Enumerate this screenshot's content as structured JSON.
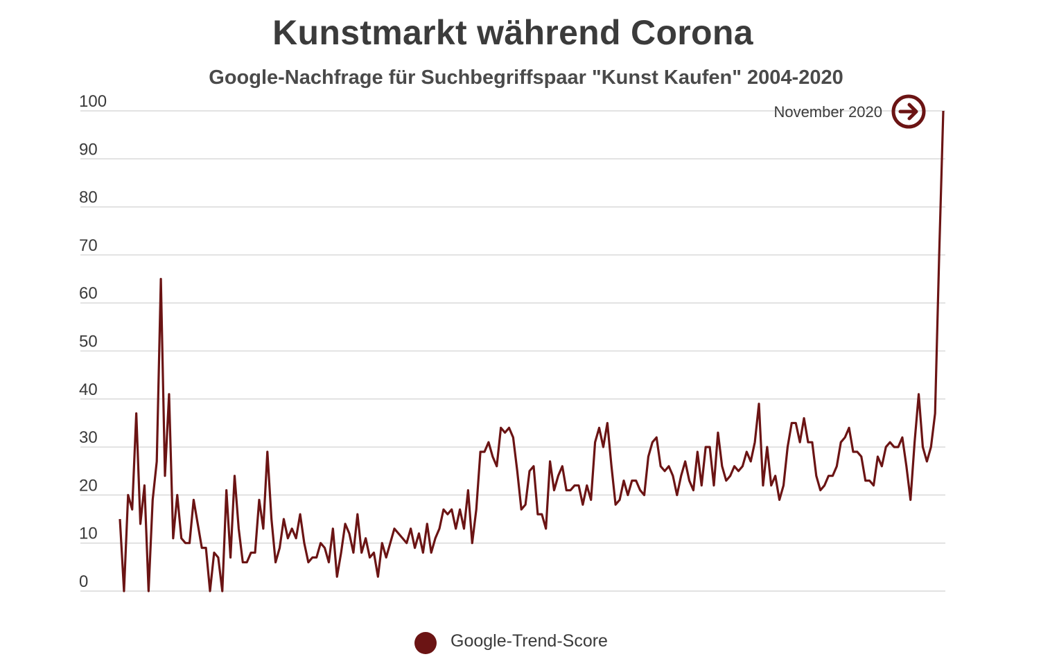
{
  "title": "Kunstmarkt während Corona",
  "subtitle": "Google-Nachfrage für Suchbegriffspaar \"Kunst Kaufen\" 2004-2020",
  "annotation": {
    "label": "November 2020",
    "icon": "arrow-right-circle-icon"
  },
  "legend": {
    "label": "Google-Trend-Score"
  },
  "colors": {
    "line": "#6b1414",
    "grid": "#d9d9d9",
    "text": "#3a3a3a"
  },
  "chart_data": {
    "type": "line",
    "title": "Kunstmarkt während Corona",
    "subtitle": "Google-Nachfrage für Suchbegriffspaar \"Kunst Kaufen\" 2004-2020",
    "xlabel": "",
    "ylabel": "",
    "x_range": [
      "2004-01",
      "2020-11"
    ],
    "ylim": [
      0,
      100
    ],
    "yticks": [
      0,
      10,
      20,
      30,
      40,
      50,
      60,
      70,
      80,
      90,
      100
    ],
    "grid": true,
    "legend_position": "bottom",
    "series": [
      {
        "name": "Google-Trend-Score",
        "values": [
          15,
          0,
          20,
          17,
          37,
          14,
          22,
          0,
          19,
          27,
          65,
          24,
          41,
          11,
          20,
          11,
          10,
          10,
          19,
          14,
          9,
          9,
          0,
          8,
          7,
          0,
          21,
          7,
          24,
          13,
          6,
          6,
          8,
          8,
          19,
          13,
          29,
          15,
          6,
          9,
          15,
          11,
          13,
          11,
          16,
          10,
          6,
          7,
          7,
          10,
          9,
          6,
          13,
          3,
          8,
          14,
          12,
          8,
          16,
          8,
          11,
          7,
          8,
          3,
          10,
          7,
          10,
          13,
          12,
          11,
          10,
          13,
          9,
          12,
          8,
          14,
          8,
          11,
          13,
          17,
          16,
          17,
          13,
          17,
          13,
          21,
          10,
          17,
          29,
          29,
          31,
          28,
          26,
          34,
          33,
          34,
          32,
          25,
          17,
          18,
          25,
          26,
          16,
          16,
          13,
          27,
          21,
          24,
          26,
          21,
          21,
          22,
          22,
          18,
          22,
          19,
          31,
          34,
          30,
          35,
          26,
          18,
          19,
          23,
          20,
          23,
          23,
          21,
          20,
          28,
          31,
          32,
          26,
          25,
          26,
          24,
          20,
          24,
          27,
          23,
          21,
          29,
          22,
          30,
          30,
          22,
          33,
          26,
          23,
          24,
          26,
          25,
          26,
          29,
          27,
          31,
          39,
          22,
          30,
          22,
          24,
          19,
          22,
          30,
          35,
          35,
          31,
          36,
          31,
          31,
          24,
          21,
          22,
          24,
          24,
          26,
          31,
          32,
          34,
          29,
          29,
          28,
          23,
          23,
          22,
          28,
          26,
          30,
          31,
          30,
          30,
          32,
          26,
          19,
          31,
          41,
          30,
          27,
          30,
          37,
          70,
          100
        ]
      }
    ]
  }
}
